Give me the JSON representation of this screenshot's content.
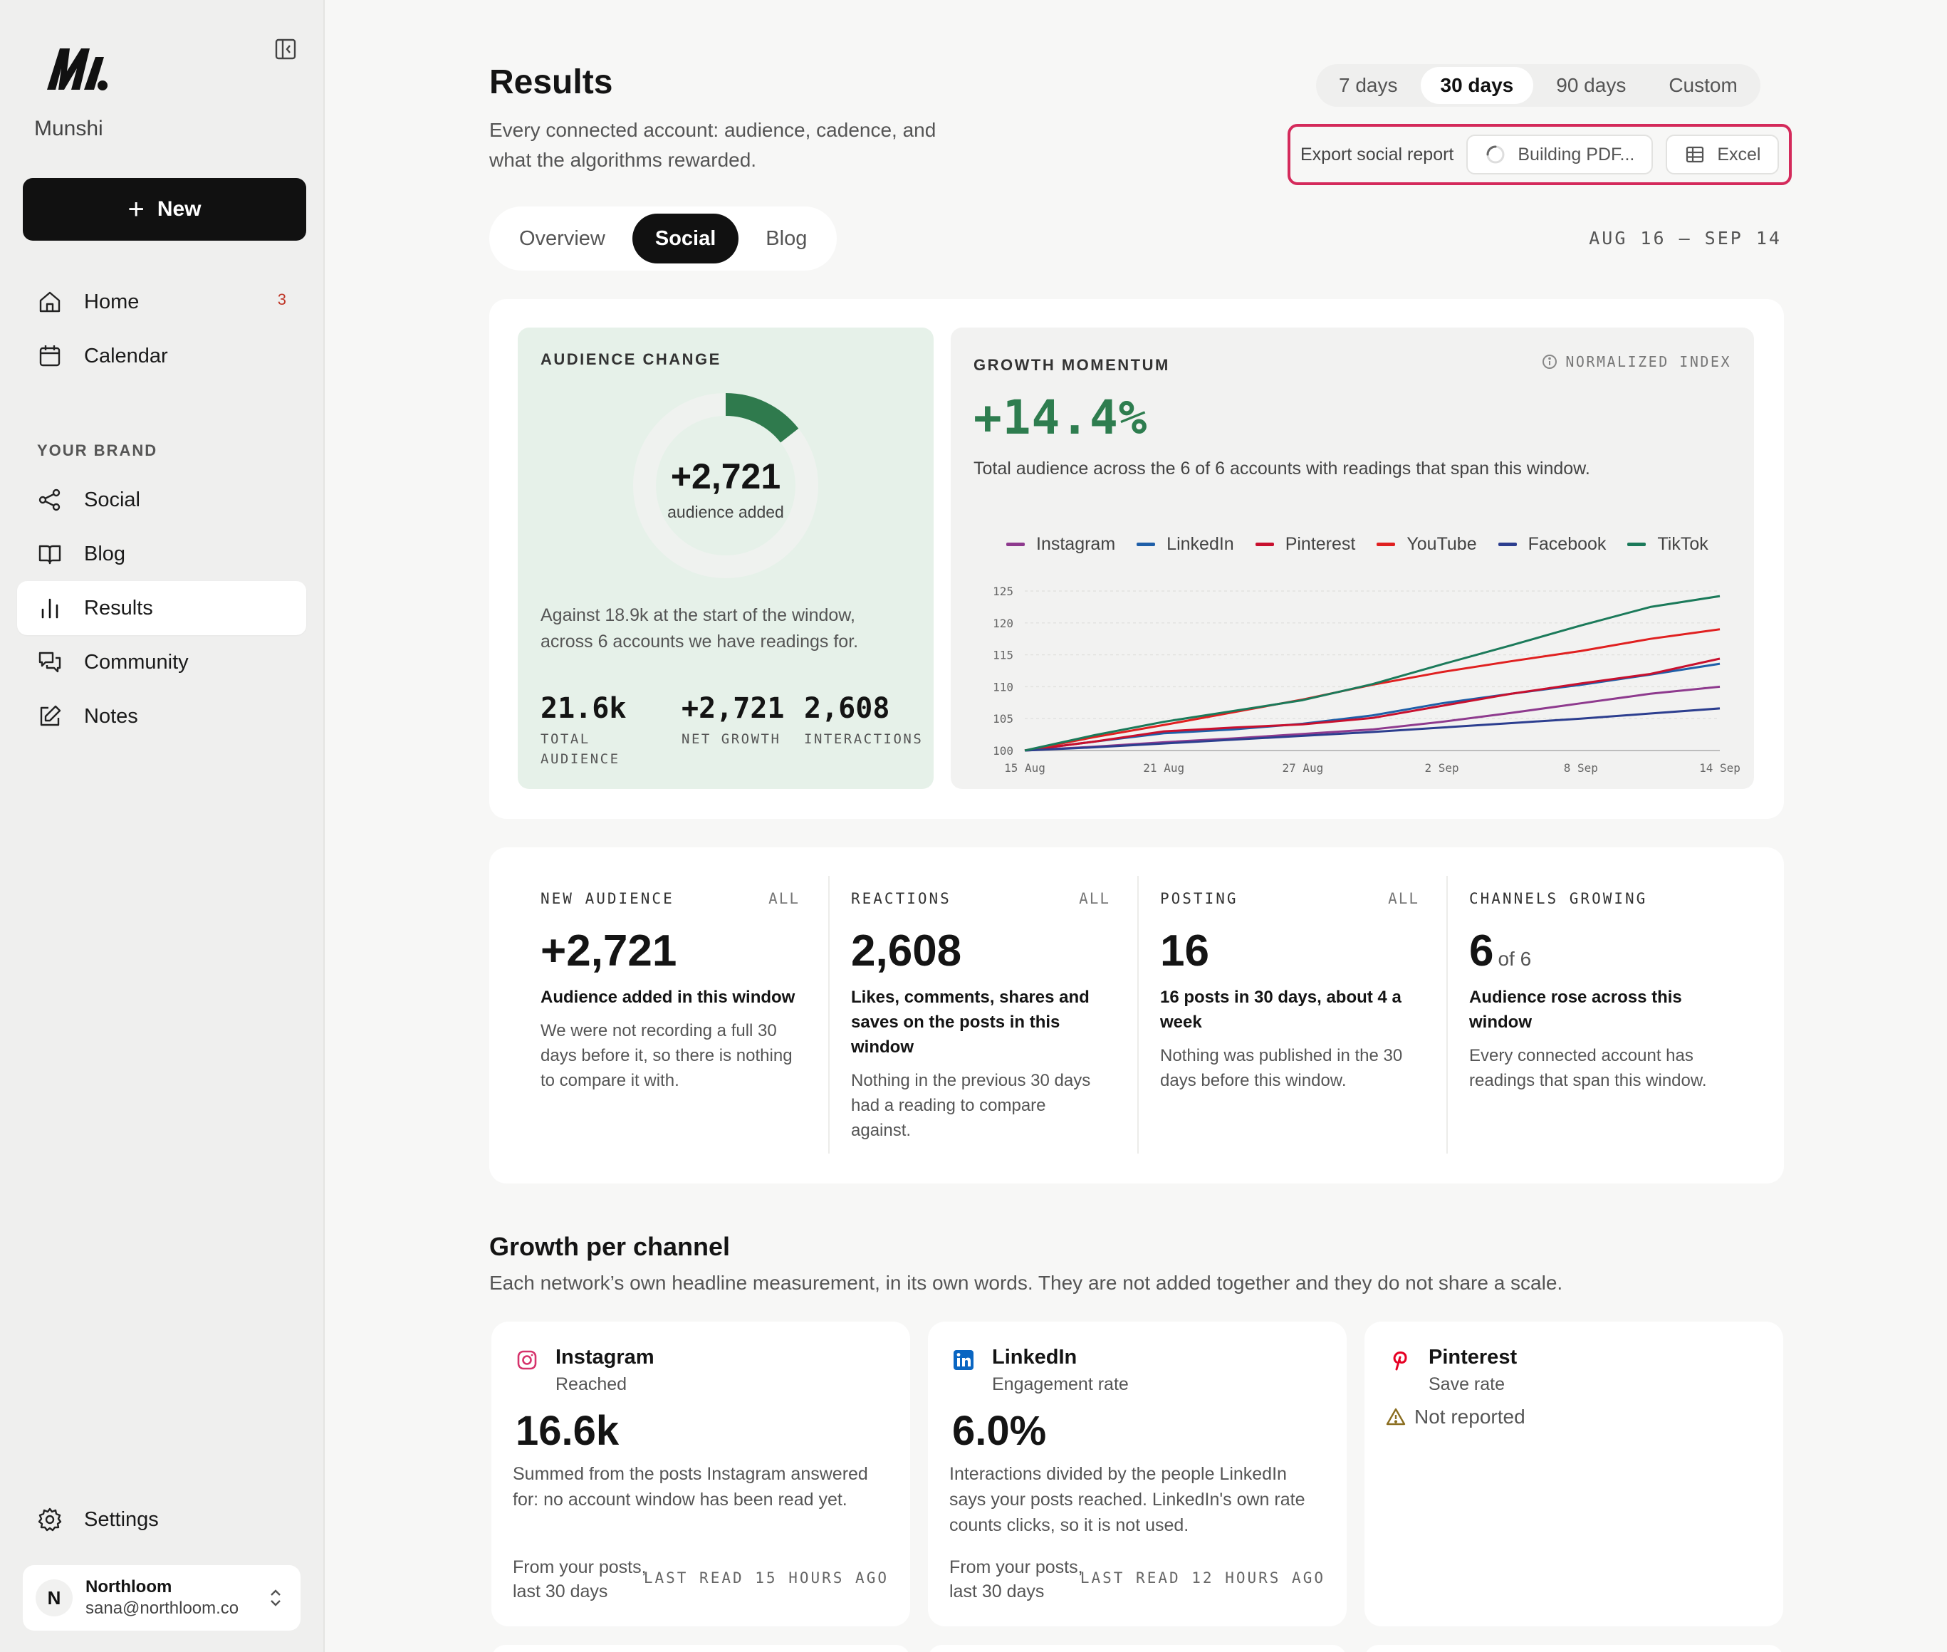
{
  "sidebar": {
    "brand": "Munshi",
    "new_label": "New",
    "nav": [
      {
        "label": "Home",
        "icon": "home-icon",
        "badge": "3"
      },
      {
        "label": "Calendar",
        "icon": "calendar-icon"
      }
    ],
    "section_label": "YOUR BRAND",
    "brand_nav": [
      {
        "label": "Social",
        "icon": "share-icon"
      },
      {
        "label": "Blog",
        "icon": "book-icon"
      },
      {
        "label": "Results",
        "icon": "bar-chart-icon",
        "active": true
      },
      {
        "label": "Community",
        "icon": "chat-icon"
      },
      {
        "label": "Notes",
        "icon": "edit-icon"
      }
    ],
    "settings_label": "Settings",
    "user": {
      "initial": "N",
      "name": "Northloom",
      "email": "sana@northloom.co"
    }
  },
  "header": {
    "title": "Results",
    "subtitle": "Every connected account: audience, cadence, and what the algorithms rewarded.",
    "ranges": [
      "7 days",
      "30 days",
      "90 days",
      "Custom"
    ],
    "active_range": "30 days",
    "export_label": "Export social report",
    "pdf_label": "Building PDF...",
    "excel_label": "Excel",
    "tabs": [
      "Overview",
      "Social",
      "Blog"
    ],
    "active_tab": "Social",
    "date_range": "AUG 16 – SEP 14"
  },
  "audience": {
    "eyebrow": "AUDIENCE CHANGE",
    "value": "+2,721",
    "caption": "audience added",
    "progress_fraction": 0.144,
    "description": "Against 18.9k at the start of the window, across 6 accounts we have readings for.",
    "stats": [
      {
        "value": "21.6k",
        "label": "TOTAL AUDIENCE"
      },
      {
        "value": "+2,721",
        "label": "NET GROWTH"
      },
      {
        "value": "2,608",
        "label": "INTERACTIONS"
      }
    ]
  },
  "momentum": {
    "eyebrow": "GROWTH MOMENTUM",
    "badge": "NORMALIZED INDEX",
    "value": "+14.4%",
    "description": "Total audience across the 6 of 6 accounts with readings that span this window."
  },
  "chart_data": {
    "type": "line",
    "title": "",
    "xlabel": "",
    "ylabel": "",
    "x": [
      "15 Aug",
      "18 Aug",
      "21 Aug",
      "24 Aug",
      "27 Aug",
      "30 Aug",
      "2 Sep",
      "5 Sep",
      "8 Sep",
      "11 Sep",
      "14 Sep"
    ],
    "x_ticks": [
      "15 Aug",
      "21 Aug",
      "27 Aug",
      "2 Sep",
      "8 Sep",
      "14 Sep"
    ],
    "y_ticks": [
      100,
      105,
      110,
      115,
      120,
      125
    ],
    "ylim": [
      100,
      125
    ],
    "grid": "horizontal",
    "legend_position": "top",
    "series": [
      {
        "name": "Instagram",
        "color": "#8e3a8e",
        "values": [
          100,
          100.6,
          101.3,
          101.9,
          102.6,
          103.3,
          104.5,
          105.9,
          107.4,
          108.9,
          110.0
        ]
      },
      {
        "name": "LinkedIn",
        "color": "#1f5fa8",
        "values": [
          100,
          101.4,
          102.7,
          103.3,
          104.2,
          105.5,
          107.4,
          108.9,
          110.3,
          111.9,
          113.6
        ]
      },
      {
        "name": "Pinterest",
        "color": "#c8102e",
        "values": [
          100,
          101.4,
          103.0,
          103.6,
          104.1,
          105.1,
          107.0,
          108.9,
          110.5,
          112.0,
          114.4
        ]
      },
      {
        "name": "YouTube",
        "color": "#e02020",
        "values": [
          100,
          102.1,
          104.0,
          106.0,
          108.0,
          110.3,
          112.3,
          114.0,
          115.6,
          117.5,
          119.0
        ]
      },
      {
        "name": "Facebook",
        "color": "#2c3e8f",
        "values": [
          100,
          100.5,
          101.1,
          101.7,
          102.3,
          102.9,
          103.6,
          104.3,
          105.0,
          105.8,
          106.6
        ]
      },
      {
        "name": "TikTok",
        "color": "#1b7a5a",
        "values": [
          100,
          102.4,
          104.5,
          106.2,
          107.9,
          110.4,
          113.5,
          116.5,
          119.6,
          122.5,
          124.2
        ]
      }
    ]
  },
  "kpis": [
    {
      "head": "NEW AUDIENCE",
      "scope": "ALL",
      "value": "+2,721",
      "of": "",
      "title": "Audience added in this window",
      "body": "We were not recording a full 30 days before it, so there is nothing to compare it with."
    },
    {
      "head": "REACTIONS",
      "scope": "ALL",
      "value": "2,608",
      "of": "",
      "title": "Likes, comments, shares and saves on the posts in this window",
      "body": "Nothing in the previous 30 days had a reading to compare against."
    },
    {
      "head": "POSTING",
      "scope": "ALL",
      "value": "16",
      "of": "",
      "title": "16 posts in 30 days, about 4 a week",
      "body": "Nothing was published in the 30 days before this window."
    },
    {
      "head": "CHANNELS GROWING",
      "scope": "",
      "value": "6",
      "of": "of 6",
      "title": "Audience rose across this window",
      "body": "Every connected account has readings that span this window."
    }
  ],
  "growth_per_channel": {
    "title": "Growth per channel",
    "subtitle": "Each network’s own headline measurement, in its own words. They are not added together and they do not share a scale.",
    "channels": [
      {
        "name": "Instagram",
        "metric": "Reached",
        "value": "16.6k",
        "description": "Summed from the posts Instagram answered for: no account window has been read yet.",
        "footer": "From your posts, last 30 days",
        "last_read": "LAST READ 15 HOURS AGO",
        "icon": "instagram-icon",
        "color": "#d6336c"
      },
      {
        "name": "LinkedIn",
        "metric": "Engagement rate",
        "value": "6.0%",
        "description": "Interactions divided by the people LinkedIn says your posts reached. LinkedIn's own rate counts clicks, so it is not used.",
        "footer": "From your posts, last 30 days",
        "last_read": "LAST READ 12 HOURS AGO",
        "icon": "linkedin-icon",
        "color": "#0a66c2"
      },
      {
        "name": "Pinterest",
        "metric": "Save rate",
        "warning": "Not reported",
        "icon": "pinterest-icon",
        "color": "#e60023"
      }
    ]
  }
}
